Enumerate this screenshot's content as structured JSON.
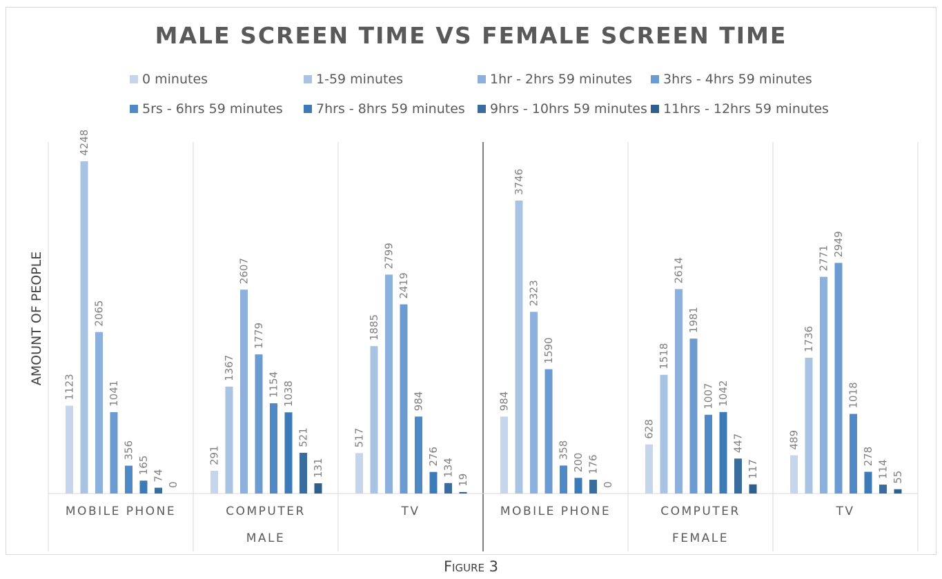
{
  "caption": "Figure 3",
  "chart_data": {
    "type": "bar",
    "title": "MALE SCREEN TIME VS FEMALE SCREEN TIME",
    "ylabel": "AMOUNT OF PEOPLE",
    "xlabel": "",
    "ylim": [
      0,
      4500
    ],
    "grid": false,
    "legend_position": "top",
    "groups": [
      {
        "name": "MALE",
        "categories": [
          "MOBILE PHONE",
          "COMPUTER",
          "TV"
        ]
      },
      {
        "name": "FEMALE",
        "categories": [
          "MOBILE PHONE",
          "COMPUTER",
          "TV"
        ]
      }
    ],
    "categories": [
      "MALE · MOBILE PHONE",
      "MALE · COMPUTER",
      "MALE · TV",
      "FEMALE · MOBILE PHONE",
      "FEMALE · COMPUTER",
      "FEMALE · TV"
    ],
    "series": [
      {
        "name": "0 minutes",
        "color": "#c5d5ec",
        "values": [
          1123,
          291,
          517,
          984,
          628,
          489
        ]
      },
      {
        "name": "1-59 minutes",
        "color": "#a9c3e3",
        "values": [
          4248,
          1367,
          1885,
          3746,
          1518,
          1736
        ]
      },
      {
        "name": "1hr - 2hrs 59 minutes",
        "color": "#8db1dc",
        "values": [
          2065,
          2607,
          2799,
          2323,
          2614,
          2771
        ]
      },
      {
        "name": "3hrs - 4hrs 59 minutes",
        "color": "#6b9bd0",
        "values": [
          1041,
          1779,
          2419,
          1590,
          1981,
          2949
        ]
      },
      {
        "name": "5rs - 6hrs 59 minutes",
        "color": "#4f8ac7",
        "values": [
          356,
          1154,
          984,
          358,
          1007,
          1018
        ]
      },
      {
        "name": "7hrs - 8hrs 59 minutes",
        "color": "#3d7ab8",
        "values": [
          165,
          1038,
          276,
          200,
          1042,
          278
        ]
      },
      {
        "name": "9hrs - 10hrs 59 minutes",
        "color": "#3a6d9e",
        "values": [
          74,
          521,
          134,
          176,
          447,
          114
        ]
      },
      {
        "name": "11hrs - 12hrs 59 minutes",
        "color": "#2f5f8c",
        "values": [
          0,
          131,
          19,
          0,
          117,
          55
        ]
      }
    ]
  }
}
